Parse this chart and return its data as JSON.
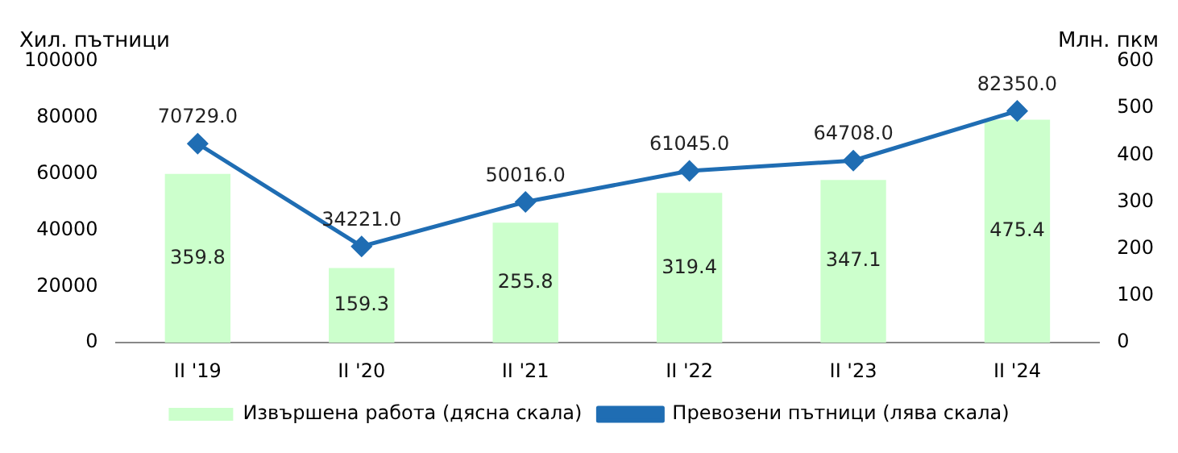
{
  "chart_data": {
    "type": "bar",
    "categories": [
      "II '19",
      "II '20",
      "II '21",
      "II '22",
      "II '23",
      "II '24"
    ],
    "ylabel": "Хил. пътници",
    "y2label": "Млн. пкм",
    "ylim": [
      0,
      100000
    ],
    "yticks": [
      0,
      20000,
      40000,
      60000,
      80000,
      100000
    ],
    "y2lim": [
      0,
      600
    ],
    "y2ticks": [
      0,
      100,
      200,
      300,
      400,
      500,
      600
    ],
    "series": [
      {
        "name": "Извършена работа (дясна скала)",
        "axis": "y2",
        "color": "#ccffcc",
        "values": [
          359.8,
          159.3,
          255.8,
          319.4,
          347.1,
          475.4
        ],
        "value_labels": [
          "359.8",
          "159.3",
          "255.8",
          "319.4",
          "347.1",
          "475.4"
        ]
      },
      {
        "name": "Превозени пътници (лява скала)",
        "type": "line",
        "axis": "y",
        "color": "#1f6db3",
        "marker": "diamond",
        "values": [
          70729,
          34221,
          50016,
          61045,
          64708,
          82350
        ],
        "value_labels": [
          "70729.0",
          "34221.0",
          "50016.0",
          "61045.0",
          "64708.0",
          "82350.0"
        ]
      }
    ],
    "grid": false,
    "legend": "bottom"
  }
}
